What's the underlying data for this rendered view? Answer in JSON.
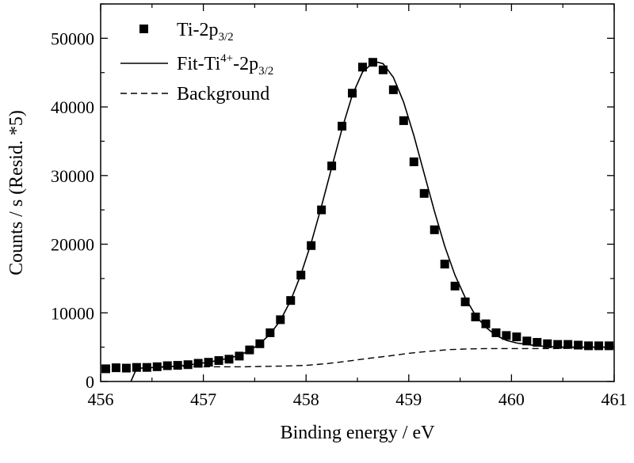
{
  "chart_data": {
    "type": "scatter",
    "xlabel": "Binding energy / eV",
    "ylabel": "Counts / s  (Resid. *5)",
    "xlim": [
      456,
      461
    ],
    "ylim": [
      0,
      55000
    ],
    "x_ticks": [
      456,
      457,
      458,
      459,
      460,
      461
    ],
    "y_ticks": [
      0,
      10000,
      20000,
      30000,
      40000,
      50000
    ],
    "grid": false,
    "legend_position": "top-left",
    "legend": [
      {
        "label_main": "Ti-2p",
        "label_sub": "3/2",
        "style": "square-marker"
      },
      {
        "label_main": "Fit-Ti",
        "label_sup": "4+",
        "label_mid": "-2p",
        "label_sub": "3/2",
        "style": "solid-line"
      },
      {
        "label_main": "Background",
        "style": "dashed-line"
      }
    ],
    "series": [
      {
        "name": "Ti-2p3/2",
        "style": "square-marker",
        "x": [
          456.05,
          456.15,
          456.25,
          456.35,
          456.45,
          456.55,
          456.65,
          456.75,
          456.85,
          456.95,
          457.05,
          457.15,
          457.25,
          457.35,
          457.45,
          457.55,
          457.65,
          457.75,
          457.85,
          457.95,
          458.05,
          458.15,
          458.25,
          458.35,
          458.45,
          458.55,
          458.65,
          458.75,
          458.85,
          458.95,
          459.05,
          459.15,
          459.25,
          459.35,
          459.45,
          459.55,
          459.65,
          459.75,
          459.85,
          459.95,
          460.05,
          460.15,
          460.25,
          460.35,
          460.45,
          460.55,
          460.65,
          460.75,
          460.85,
          460.95
        ],
        "y": [
          1850,
          2000,
          1950,
          2050,
          2050,
          2150,
          2300,
          2350,
          2450,
          2650,
          2800,
          3050,
          3250,
          3700,
          4600,
          5500,
          7100,
          9000,
          11800,
          15500,
          19800,
          25000,
          31400,
          37200,
          42000,
          45800,
          46500,
          45400,
          42500,
          38000,
          32000,
          27400,
          22100,
          17100,
          13900,
          11600,
          9400,
          8400,
          7100,
          6700,
          6500,
          5900,
          5700,
          5500,
          5400,
          5400,
          5300,
          5200,
          5200,
          5200
        ]
      },
      {
        "name": "Fit-Ti4+-2p3/2",
        "style": "solid-line",
        "x": [
          456.25,
          456.35,
          456.45,
          456.55,
          456.65,
          456.75,
          456.85,
          456.95,
          457.05,
          457.15,
          457.25,
          457.35,
          457.45,
          457.55,
          457.65,
          457.75,
          457.85,
          457.95,
          458.05,
          458.15,
          458.25,
          458.35,
          458.45,
          458.55,
          458.65,
          458.7,
          458.75,
          458.85,
          458.95,
          459.05,
          459.15,
          459.25,
          459.35,
          459.45,
          459.55,
          459.65,
          459.75,
          459.85,
          459.95,
          460.05,
          460.15,
          460.25,
          460.35,
          460.45,
          460.55,
          460.65,
          460.75,
          460.85,
          460.95,
          461.0
        ],
        "y": [
          -1500,
          1900,
          2000,
          2050,
          2150,
          2250,
          2400,
          2600,
          2800,
          3100,
          3400,
          3800,
          4500,
          5500,
          6900,
          8900,
          11800,
          15600,
          20200,
          25500,
          31200,
          36800,
          41700,
          45100,
          46400,
          46500,
          46300,
          44300,
          40700,
          35800,
          30300,
          24800,
          19700,
          15500,
          12200,
          9600,
          7900,
          6700,
          6000,
          5600,
          5400,
          5200,
          5100,
          5000,
          5000,
          5000,
          5000,
          5000,
          5000,
          5000
        ]
      },
      {
        "name": "Background",
        "style": "dashed-line",
        "x": [
          456.6,
          456.8,
          457.0,
          457.2,
          457.4,
          457.6,
          457.8,
          458.0,
          458.2,
          458.4,
          458.6,
          458.8,
          459.0,
          459.2,
          459.4,
          459.6,
          459.8,
          460.0,
          460.2,
          460.4,
          460.6,
          460.8,
          461.0
        ],
        "y": [
          2200,
          2200,
          2150,
          2150,
          2150,
          2200,
          2250,
          2350,
          2600,
          2950,
          3350,
          3700,
          4100,
          4400,
          4650,
          4750,
          4800,
          4800,
          4800,
          4800,
          4850,
          4850,
          4850
        ]
      }
    ]
  }
}
